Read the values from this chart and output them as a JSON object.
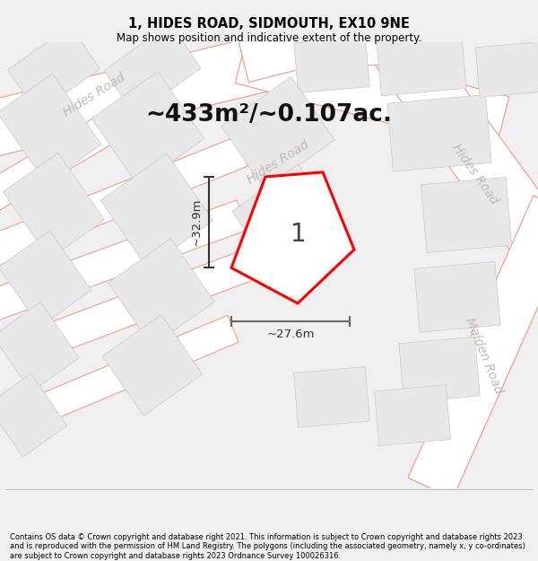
{
  "title": "1, HIDES ROAD, SIDMOUTH, EX10 9NE",
  "subtitle": "Map shows position and indicative extent of the property.",
  "area_text": "~433m²/~0.107ac.",
  "dim_width": "~27.6m",
  "dim_height": "~32.9m",
  "plot_label": "1",
  "footer": "Contains OS data © Crown copyright and database right 2021. This information is subject to Crown copyright and database rights 2023 and is reproduced with the permission of HM Land Registry. The polygons (including the associated geometry, namely x, y co-ordinates) are subject to Crown copyright and database rights 2023 Ordnance Survey 100026316.",
  "background_color": "#f0f0f0",
  "map_bg": "#f8f8f8",
  "road_line_color": "#f0a090",
  "road_fill_color": "#f8f0ee",
  "building_color": "#e8e8e8",
  "building_edge": "#c8c8c8",
  "plot_color": "#ff0000",
  "dim_color": "#333333",
  "title_color": "#000000",
  "footer_color": "#000000",
  "road_text_color": "#c0b8b8",
  "area_text_color": "#111111"
}
